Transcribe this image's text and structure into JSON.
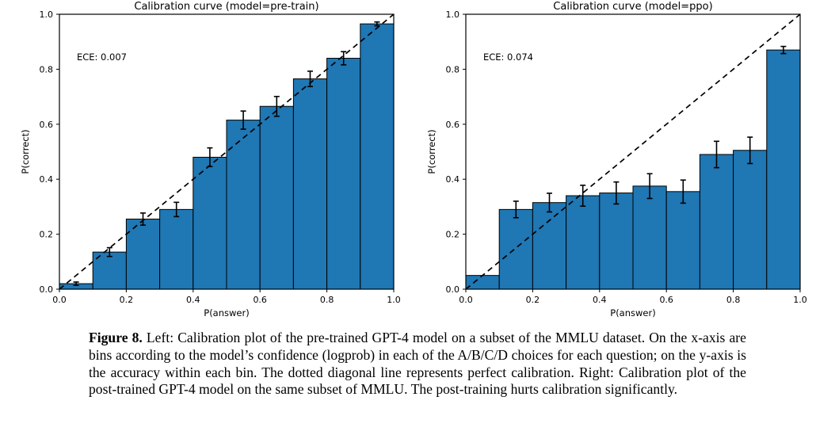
{
  "page": {
    "background": "#ffffff"
  },
  "caption": {
    "label": "Figure 8.",
    "text": " Left: Calibration plot of the pre-trained GPT-4 model on a subset of the MMLU dataset. On the x-axis are bins according to the model’s confidence (logprob) in each of the A/B/C/D choices for each question; on the y-axis is the accuracy within each bin. The dotted diagonal line represents perfect calibration. Right: Calibration plot of the post-trained GPT-4 model on the same subset of MMLU. The post-training hurts calibration significantly."
  },
  "chart_data": [
    {
      "type": "bar",
      "subtype": "calibration-histogram",
      "title": "Calibration curve (model=pre-train)",
      "annotation": "ECE: 0.007",
      "xlabel": "P(answer)",
      "ylabel": "P(correct)",
      "xlim": [
        0.0,
        1.0
      ],
      "ylim": [
        0.0,
        1.0
      ],
      "xticks": [
        0.0,
        0.2,
        0.4,
        0.6,
        0.8,
        1.0
      ],
      "yticks": [
        0.0,
        0.2,
        0.4,
        0.6,
        0.8,
        1.0
      ],
      "grid": false,
      "legend": "none",
      "bin_edges": [
        0.0,
        0.1,
        0.2,
        0.3,
        0.4,
        0.5,
        0.6,
        0.7,
        0.8,
        0.9,
        1.0
      ],
      "values": [
        0.02,
        0.135,
        0.255,
        0.29,
        0.48,
        0.615,
        0.665,
        0.765,
        0.84,
        0.965
      ],
      "errors": [
        0.006,
        0.016,
        0.022,
        0.026,
        0.034,
        0.033,
        0.036,
        0.028,
        0.024,
        0.007
      ],
      "bar_color": "#1f77b4",
      "bar_edge_color": "#000000",
      "diagonal_line": {
        "from": [
          0,
          0
        ],
        "to": [
          1,
          1
        ],
        "style": "dashed",
        "color": "#000000",
        "meaning": "perfect calibration"
      }
    },
    {
      "type": "bar",
      "subtype": "calibration-histogram",
      "title": "Calibration curve (model=ppo)",
      "annotation": "ECE: 0.074",
      "xlabel": "P(answer)",
      "ylabel": "P(correct)",
      "xlim": [
        0.0,
        1.0
      ],
      "ylim": [
        0.0,
        1.0
      ],
      "xticks": [
        0.0,
        0.2,
        0.4,
        0.6,
        0.8,
        1.0
      ],
      "yticks": [
        0.0,
        0.2,
        0.4,
        0.6,
        0.8,
        1.0
      ],
      "grid": false,
      "legend": "none",
      "bin_edges": [
        0.0,
        0.1,
        0.2,
        0.3,
        0.4,
        0.5,
        0.6,
        0.7,
        0.8,
        0.9,
        1.0
      ],
      "values": [
        0.05,
        0.29,
        0.315,
        0.34,
        0.35,
        0.375,
        0.355,
        0.49,
        0.505,
        0.87
      ],
      "errors": [
        0,
        0.03,
        0.034,
        0.038,
        0.04,
        0.045,
        0.042,
        0.048,
        0.048,
        0.013
      ],
      "bar_color": "#1f77b4",
      "bar_edge_color": "#000000",
      "diagonal_line": {
        "from": [
          0,
          0
        ],
        "to": [
          1,
          1
        ],
        "style": "dashed",
        "color": "#000000",
        "meaning": "perfect calibration"
      }
    }
  ]
}
